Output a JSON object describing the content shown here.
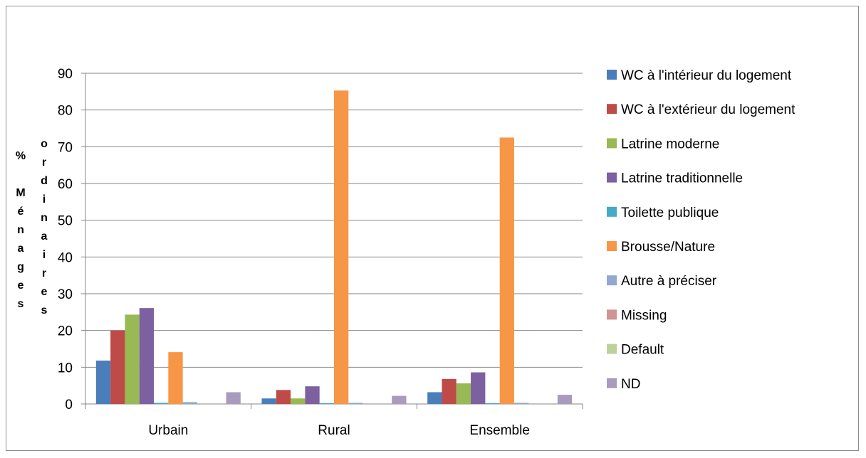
{
  "chart_data": {
    "type": "bar",
    "categories": [
      "Urbain",
      "Rural",
      "Ensemble"
    ],
    "ylabel": "% Ménages ordinaires",
    "ylim": [
      0,
      90
    ],
    "yticks": [
      "0",
      "10",
      "20",
      "30",
      "40",
      "50",
      "60",
      "70",
      "80",
      "90"
    ],
    "grid": true,
    "legend_position": "right",
    "series": [
      {
        "name": "WC à l'intérieur du logement",
        "color": "#4a7ebb",
        "values": [
          11.8,
          1.5,
          3.2
        ]
      },
      {
        "name": "WC à l'extérieur du logement",
        "color": "#be4b48",
        "values": [
          20.0,
          3.8,
          6.8
        ]
      },
      {
        "name": "Latrine moderne",
        "color": "#98b954",
        "values": [
          24.3,
          1.5,
          5.6
        ]
      },
      {
        "name": "Latrine traditionnelle",
        "color": "#7d60a0",
        "values": [
          26.1,
          4.8,
          8.6
        ]
      },
      {
        "name": "Toilette publique",
        "color": "#46aac5",
        "values": [
          0.3,
          0.2,
          0.2
        ]
      },
      {
        "name": "Brousse/Nature",
        "color": "#f79646",
        "values": [
          14.1,
          85.3,
          72.5
        ]
      },
      {
        "name": "Autre à préciser",
        "color": "#92a9cf",
        "values": [
          0.5,
          0.3,
          0.3
        ]
      },
      {
        "name": "Missing",
        "color": "#d09493",
        "values": [
          0,
          0,
          0
        ]
      },
      {
        "name": "Default",
        "color": "#bbd39a",
        "values": [
          0,
          0,
          0
        ]
      },
      {
        "name": "ND",
        "color": "#a99bbd",
        "values": [
          3.2,
          2.2,
          2.5
        ]
      }
    ]
  }
}
